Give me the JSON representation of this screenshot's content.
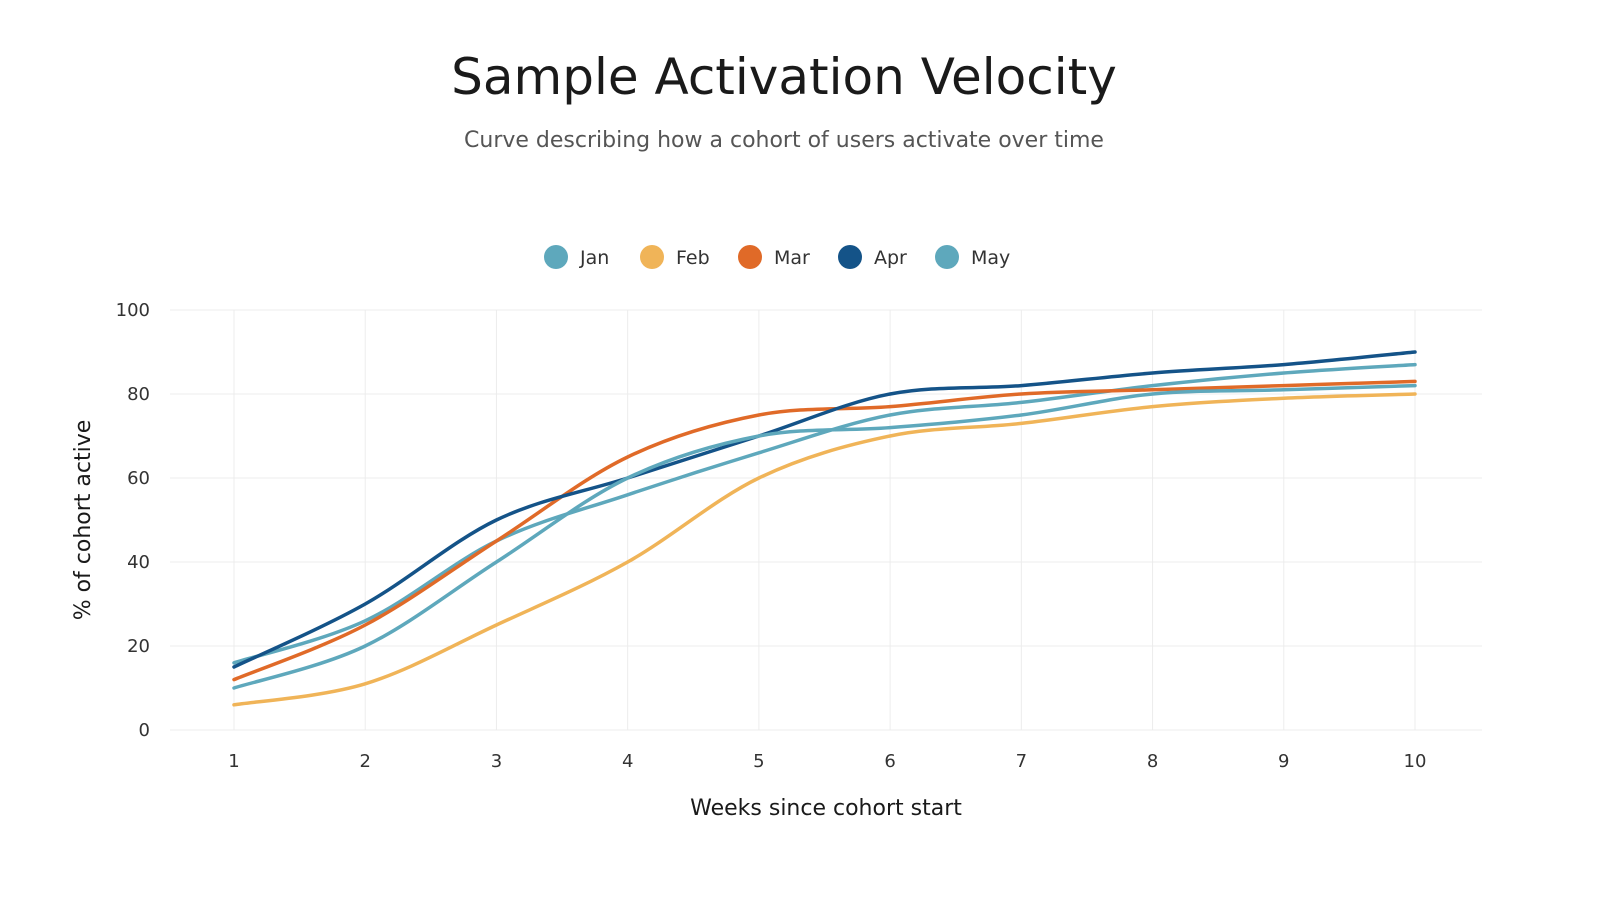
{
  "chart_data": {
    "type": "line",
    "title": "Sample Activation Velocity",
    "subtitle": "Curve describing how a cohort of users activate over time",
    "xlabel": "Weeks since cohort start",
    "ylabel": "% of cohort active",
    "x": [
      1,
      2,
      3,
      4,
      5,
      6,
      7,
      8,
      9,
      10
    ],
    "ylim": [
      0,
      100
    ],
    "yticks": [
      0,
      20,
      40,
      60,
      80,
      100
    ],
    "grid": true,
    "legend_position": "top",
    "smooth": true,
    "series": [
      {
        "name": "Jan",
        "color": "#5ea8bc",
        "values": [
          16,
          26,
          45,
          56,
          66,
          75,
          78,
          82,
          85,
          87
        ]
      },
      {
        "name": "Feb",
        "color": "#f0b458",
        "values": [
          6,
          11,
          25,
          40,
          60,
          70,
          73,
          77,
          79,
          80
        ]
      },
      {
        "name": "Mar",
        "color": "#e06a28",
        "values": [
          12,
          25,
          45,
          65,
          75,
          77,
          80,
          81,
          82,
          83
        ]
      },
      {
        "name": "Apr",
        "color": "#145388",
        "values": [
          15,
          30,
          50,
          60,
          70,
          80,
          82,
          85,
          87,
          90
        ]
      },
      {
        "name": "May",
        "color": "#5ea8bc",
        "values": [
          10,
          20,
          40,
          60,
          70,
          72,
          75,
          80,
          81,
          82
        ]
      }
    ]
  }
}
